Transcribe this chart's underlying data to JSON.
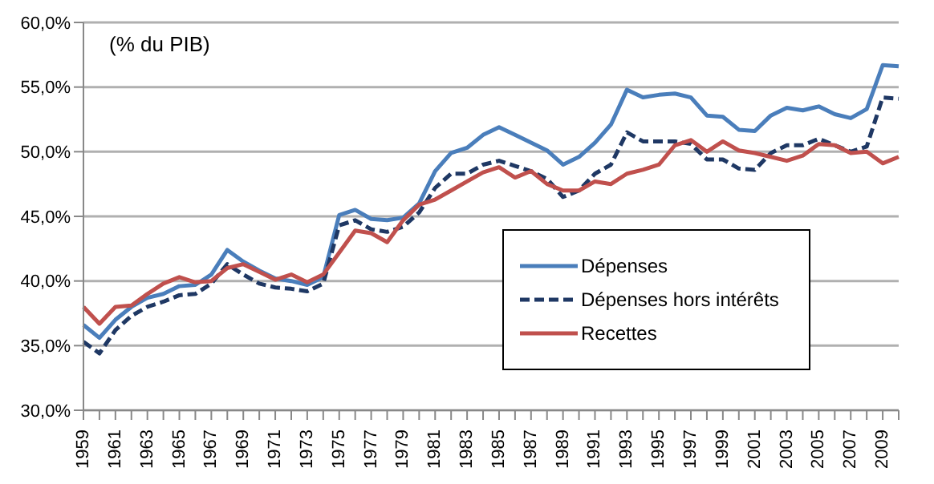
{
  "chart_data": {
    "type": "line",
    "annotations": [
      "(% du PIB)"
    ],
    "categories": [
      "1959",
      null,
      "1961",
      null,
      "1963",
      null,
      "1965",
      null,
      "1967",
      null,
      "1969",
      null,
      "1971",
      null,
      "1973",
      null,
      "1975",
      null,
      "1977",
      null,
      "1979",
      null,
      "1981",
      null,
      "1983",
      null,
      "1985",
      null,
      "1987",
      null,
      "1989",
      null,
      "1991",
      null,
      "1993",
      null,
      "1995",
      null,
      "1997",
      null,
      "1999",
      null,
      "2001",
      null,
      "2003",
      null,
      "2005",
      null,
      "2007",
      null,
      "2009",
      null
    ],
    "series": [
      {
        "name": "Dépenses",
        "color": "#4a7ebb",
        "line_style": "solid",
        "values": [
          36.6,
          35.6,
          37.0,
          38.0,
          38.7,
          39.0,
          39.6,
          39.7,
          40.5,
          42.4,
          41.5,
          40.8,
          40.2,
          40.0,
          39.7,
          40.3,
          45.1,
          45.5,
          44.8,
          44.7,
          44.9,
          46.0,
          48.5,
          49.9,
          50.3,
          51.3,
          51.9,
          51.3,
          50.7,
          50.1,
          49.0,
          49.6,
          50.7,
          52.1,
          54.8,
          54.2,
          54.4,
          54.5,
          54.2,
          52.8,
          52.7,
          51.7,
          51.6,
          52.8,
          53.4,
          53.2,
          53.5,
          52.9,
          52.6,
          53.3,
          56.7,
          56.6
        ]
      },
      {
        "name": "Dépenses hors intérêts",
        "color": "#1f3864",
        "line_style": "dashed",
        "values": [
          35.3,
          34.4,
          36.2,
          37.3,
          38.0,
          38.4,
          38.9,
          39.0,
          39.8,
          41.3,
          40.5,
          39.8,
          39.5,
          39.4,
          39.2,
          39.8,
          44.3,
          44.7,
          44.0,
          43.8,
          44.2,
          45.3,
          47.2,
          48.3,
          48.3,
          49.0,
          49.3,
          48.9,
          48.5,
          47.9,
          46.5,
          47.0,
          48.3,
          49.0,
          51.5,
          50.8,
          50.8,
          50.8,
          50.6,
          49.4,
          49.4,
          48.7,
          48.6,
          49.9,
          50.5,
          50.5,
          51.0,
          50.5,
          50.0,
          50.4,
          54.2,
          54.1
        ]
      },
      {
        "name": "Recettes",
        "color": "#c0504d",
        "line_style": "solid",
        "values": [
          38.0,
          36.7,
          38.0,
          38.1,
          39.0,
          39.8,
          40.3,
          39.9,
          40.0,
          41.0,
          41.3,
          40.7,
          40.1,
          40.5,
          39.9,
          40.5,
          42.2,
          43.9,
          43.7,
          43.0,
          44.7,
          45.9,
          46.3,
          47.0,
          47.7,
          48.4,
          48.8,
          48.0,
          48.5,
          47.5,
          47.0,
          47.0,
          47.7,
          47.5,
          48.3,
          48.6,
          49.0,
          50.5,
          50.9,
          50.0,
          50.8,
          50.1,
          49.9,
          49.6,
          49.3,
          49.7,
          50.6,
          50.5,
          49.9,
          50.0,
          49.1,
          49.6
        ]
      }
    ],
    "ylim": [
      30,
      60
    ],
    "yticks": [
      {
        "value": 30,
        "label": "30,0%"
      },
      {
        "value": 35,
        "label": "35,0%"
      },
      {
        "value": 40,
        "label": "40,0%"
      },
      {
        "value": 45,
        "label": "45,0%"
      },
      {
        "value": 50,
        "label": "50,0%"
      },
      {
        "value": 55,
        "label": "55,0%"
      },
      {
        "value": 60,
        "label": "60,0%"
      }
    ],
    "grid": "y",
    "legend": "right",
    "marker": "none"
  }
}
